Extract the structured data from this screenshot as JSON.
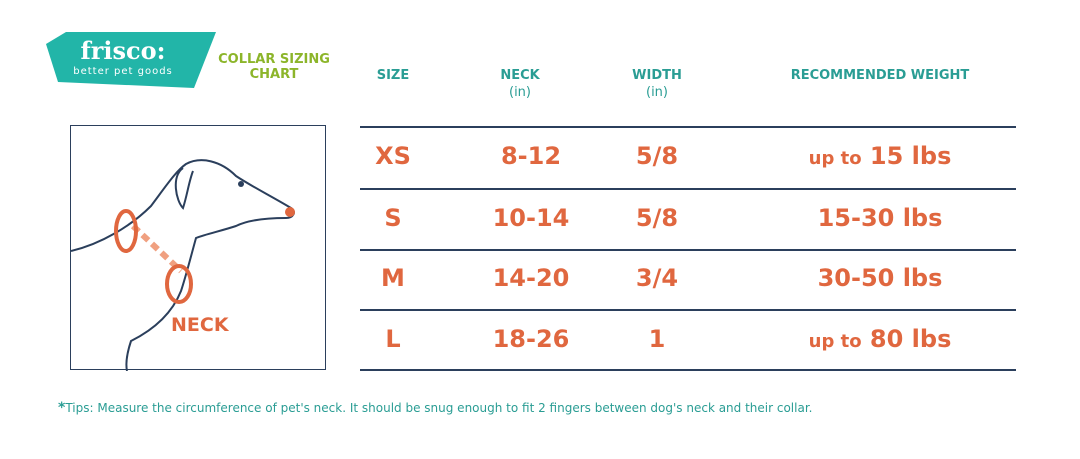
{
  "logo": {
    "brand": "frisco:",
    "tagline": "better pet goods"
  },
  "title": "COLLAR SIZING CHART",
  "headers": {
    "size": "SIZE",
    "neck": "NECK",
    "neck_unit": "(in)",
    "width": "WIDTH",
    "width_unit": "(in)",
    "weight": "RECOMMENDED WEIGHT"
  },
  "rows": [
    {
      "size": "XS",
      "neck": "8-12",
      "width": "5/8",
      "weight_prefix": "up to",
      "weight": "15 lbs"
    },
    {
      "size": "S",
      "neck": "10-14",
      "width": "5/8",
      "weight_prefix": "",
      "weight": "15-30 lbs"
    },
    {
      "size": "M",
      "neck": "14-20",
      "width": "3/4",
      "weight_prefix": "",
      "weight": "30-50 lbs"
    },
    {
      "size": "L",
      "neck": "18-26",
      "width": "1",
      "weight_prefix": "up to",
      "weight": "80 lbs"
    }
  ],
  "illustration": {
    "label": "NECK"
  },
  "tips": {
    "marker": "*",
    "text": "Tips: Measure the circumference of pet's neck. It should be snug enough to fit 2 fingers between dog's neck and their collar."
  },
  "colors": {
    "teal": "#22b5a8",
    "green": "#8cb52a",
    "orange": "#e0673f",
    "navy": "#2b3f5c"
  }
}
